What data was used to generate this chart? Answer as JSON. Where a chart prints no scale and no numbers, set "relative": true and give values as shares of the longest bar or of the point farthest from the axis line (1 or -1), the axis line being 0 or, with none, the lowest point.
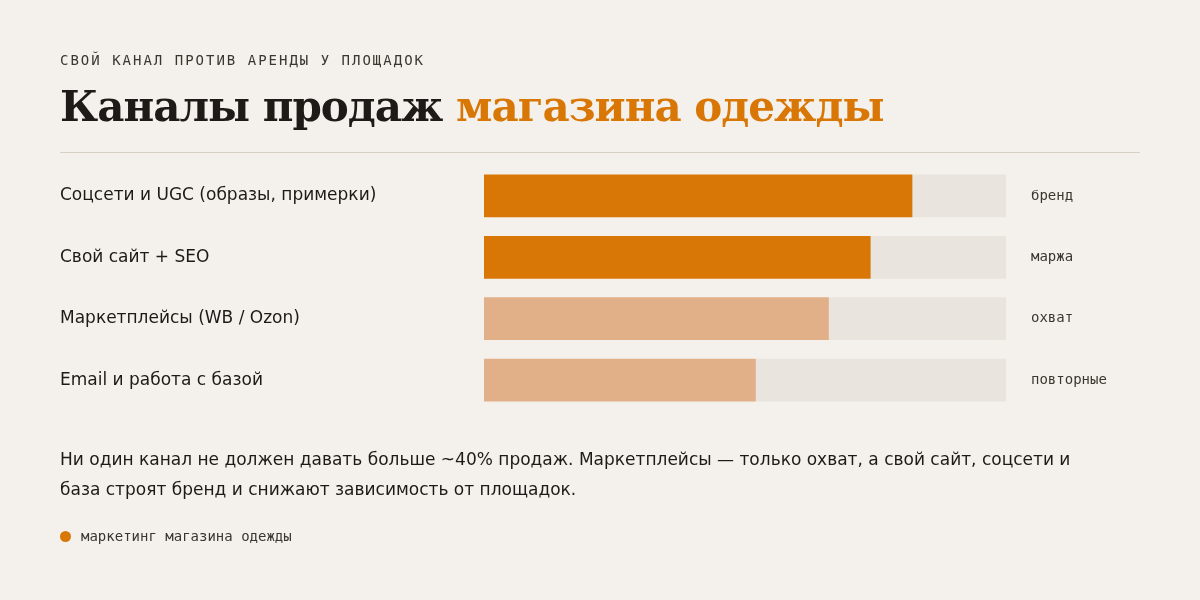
{
  "chart_data": {
    "type": "bar",
    "orientation": "horizontal",
    "relative": true,
    "subtitle": "СВОЙ КАНАЛ ПРОТИВ АРЕНДЫ У ПЛОЩАДОК",
    "title": "Каналы продаж магазина одежды",
    "categories": [
      "Соцсети и UGC (образы, примерки)",
      "Свой сайт + SEO",
      "Маркетплейсы (WB / Ozon)",
      "Email и работа с базой"
    ],
    "stacked": true,
    "series": [
      {
        "colors": [
          "#d97706",
          "#d97706",
          "#e2b088",
          "#e2b088"
        ],
        "values": [
          0.82,
          0.74,
          0.66,
          0.52
        ]
      },
      {
        "color": "#e9e4dd",
        "values": [
          0.18,
          0.26,
          0.34,
          0.48
        ]
      }
    ],
    "legend": false,
    "annotations": [
      "бренд",
      "маржа",
      "охват",
      "повторные",
      "Ни один канал не должен давать больше ~40% продаж. Маркетплейсы — только охват, а свой сайт, соцсети и база строят бренд и снижают зависимость от площадок.",
      "маркетинг магазина одежды"
    ]
  }
}
